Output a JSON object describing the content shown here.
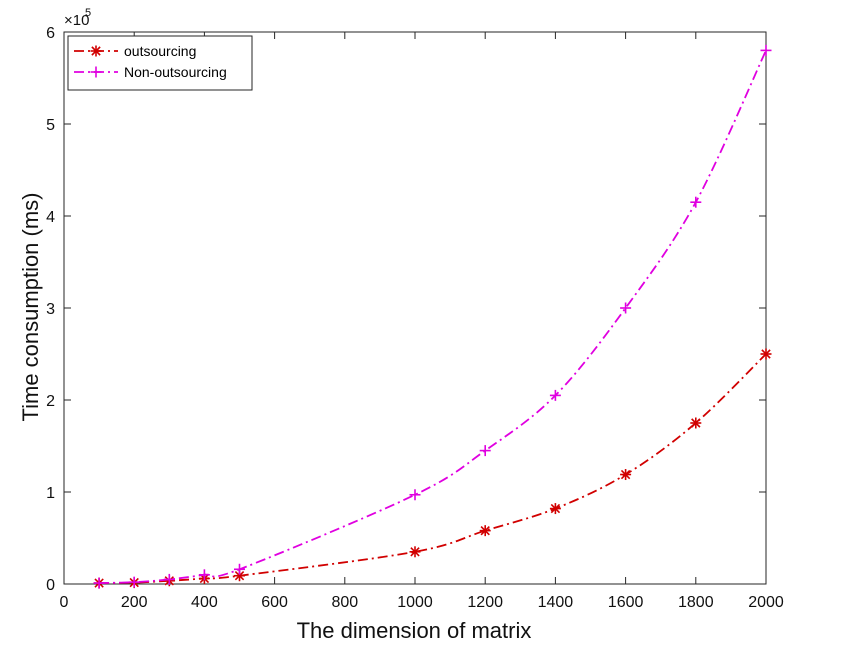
{
  "chart_data": {
    "type": "line",
    "xlabel": "The dimension of matrix",
    "ylabel": "Time consumption (ms)",
    "y_multiplier_base": "×10",
    "y_multiplier_exponent": "5",
    "xlim": [
      0,
      2000
    ],
    "ylim": [
      0,
      6
    ],
    "x_ticks": [
      0,
      200,
      400,
      600,
      800,
      1000,
      1200,
      1400,
      1600,
      1800,
      2000
    ],
    "y_ticks": [
      0,
      1,
      2,
      3,
      4,
      5,
      6
    ],
    "grid": false,
    "legend_position": "top-left",
    "series": [
      {
        "name": "outsourcing",
        "color": "#d10000",
        "marker": "asterisk",
        "line_style": "dash-dot",
        "x": [
          100,
          200,
          300,
          400,
          500,
          1000,
          1200,
          1400,
          1600,
          1800,
          2000
        ],
        "y": [
          0.01,
          0.015,
          0.035,
          0.06,
          0.09,
          0.35,
          0.58,
          0.82,
          1.19,
          1.75,
          2.5
        ]
      },
      {
        "name": "Non-outsourcing",
        "color": "#e000e0",
        "marker": "plus",
        "line_style": "dash-dot",
        "x": [
          100,
          200,
          300,
          400,
          500,
          1000,
          1200,
          1400,
          1600,
          1800,
          2000
        ],
        "y": [
          0.01,
          0.02,
          0.05,
          0.1,
          0.16,
          0.97,
          1.45,
          2.05,
          3.0,
          4.15,
          5.8
        ]
      }
    ]
  }
}
